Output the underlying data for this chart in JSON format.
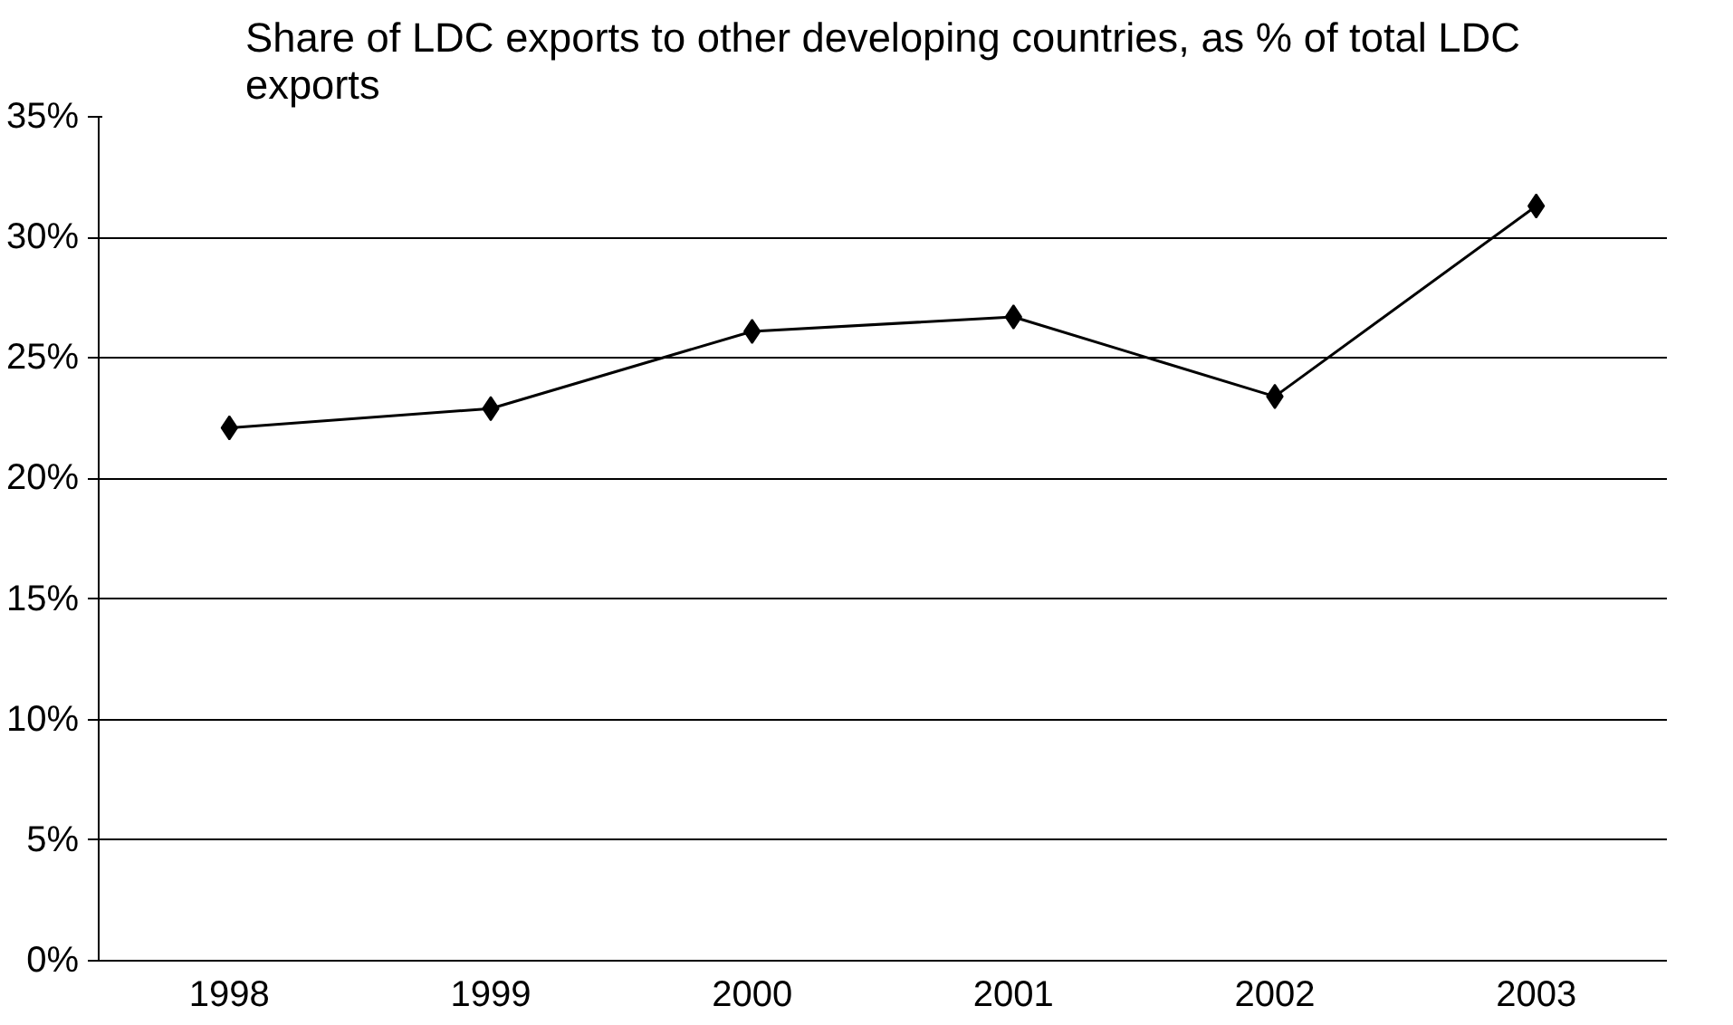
{
  "chart_data": {
    "type": "line",
    "title": "Share of LDC exports to other developing countries, as % of total LDC exports",
    "categories": [
      "1998",
      "1999",
      "2000",
      "2001",
      "2002",
      "2003"
    ],
    "series": [
      {
        "color": "#000000",
        "values": [
          22.1,
          22.9,
          26.1,
          26.7,
          23.4,
          31.3
        ]
      }
    ],
    "ylim": [
      0,
      35
    ],
    "yticks": [
      {
        "value": 0,
        "label": "0%"
      },
      {
        "value": 5,
        "label": "5%"
      },
      {
        "value": 10,
        "label": "10%"
      },
      {
        "value": 15,
        "label": "15%"
      },
      {
        "value": 20,
        "label": "20%"
      },
      {
        "value": 25,
        "label": "25%"
      },
      {
        "value": 30,
        "label": "30%"
      },
      {
        "value": 35,
        "label": "35%"
      }
    ],
    "grid": "y",
    "marker": "diamond",
    "line_style": "solid"
  }
}
